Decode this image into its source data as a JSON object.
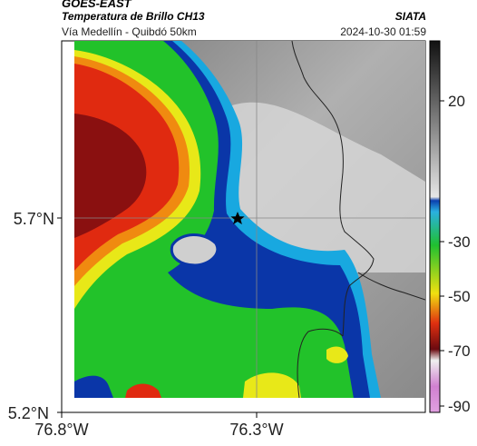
{
  "header": {
    "satellite": "GOES-EAST",
    "product": "Temperatura de Brillo CH13",
    "route": "Vía Medellín - Quibdó 50km",
    "agency": "SIATA",
    "datetime": "2024-10-30 01:59"
  },
  "axes": {
    "y_ticks": [
      "5.7°N",
      "5.2°N"
    ],
    "x_ticks": [
      "76.8°W",
      "76.3°W"
    ]
  },
  "colorbar": {
    "ticks": [
      "20",
      "-30",
      "-50",
      "-70",
      "-90"
    ],
    "colors": [
      "#111111",
      "#ffffff",
      "#0b3fae",
      "#2ab0e0",
      "#20c030",
      "#f0e010",
      "#e03010",
      "#6b0a10",
      "#e0a0e0"
    ]
  },
  "map": {
    "marker": "star-marker",
    "cloud_colors": {
      "cold_core": "#8a1010",
      "red": "#e02a10",
      "orange": "#f08a10",
      "yellow": "#e8e818",
      "green": "#22c22a",
      "blue": "#0a36a8",
      "cyan": "#18a8e0",
      "clear": "#9a9a9a"
    }
  }
}
